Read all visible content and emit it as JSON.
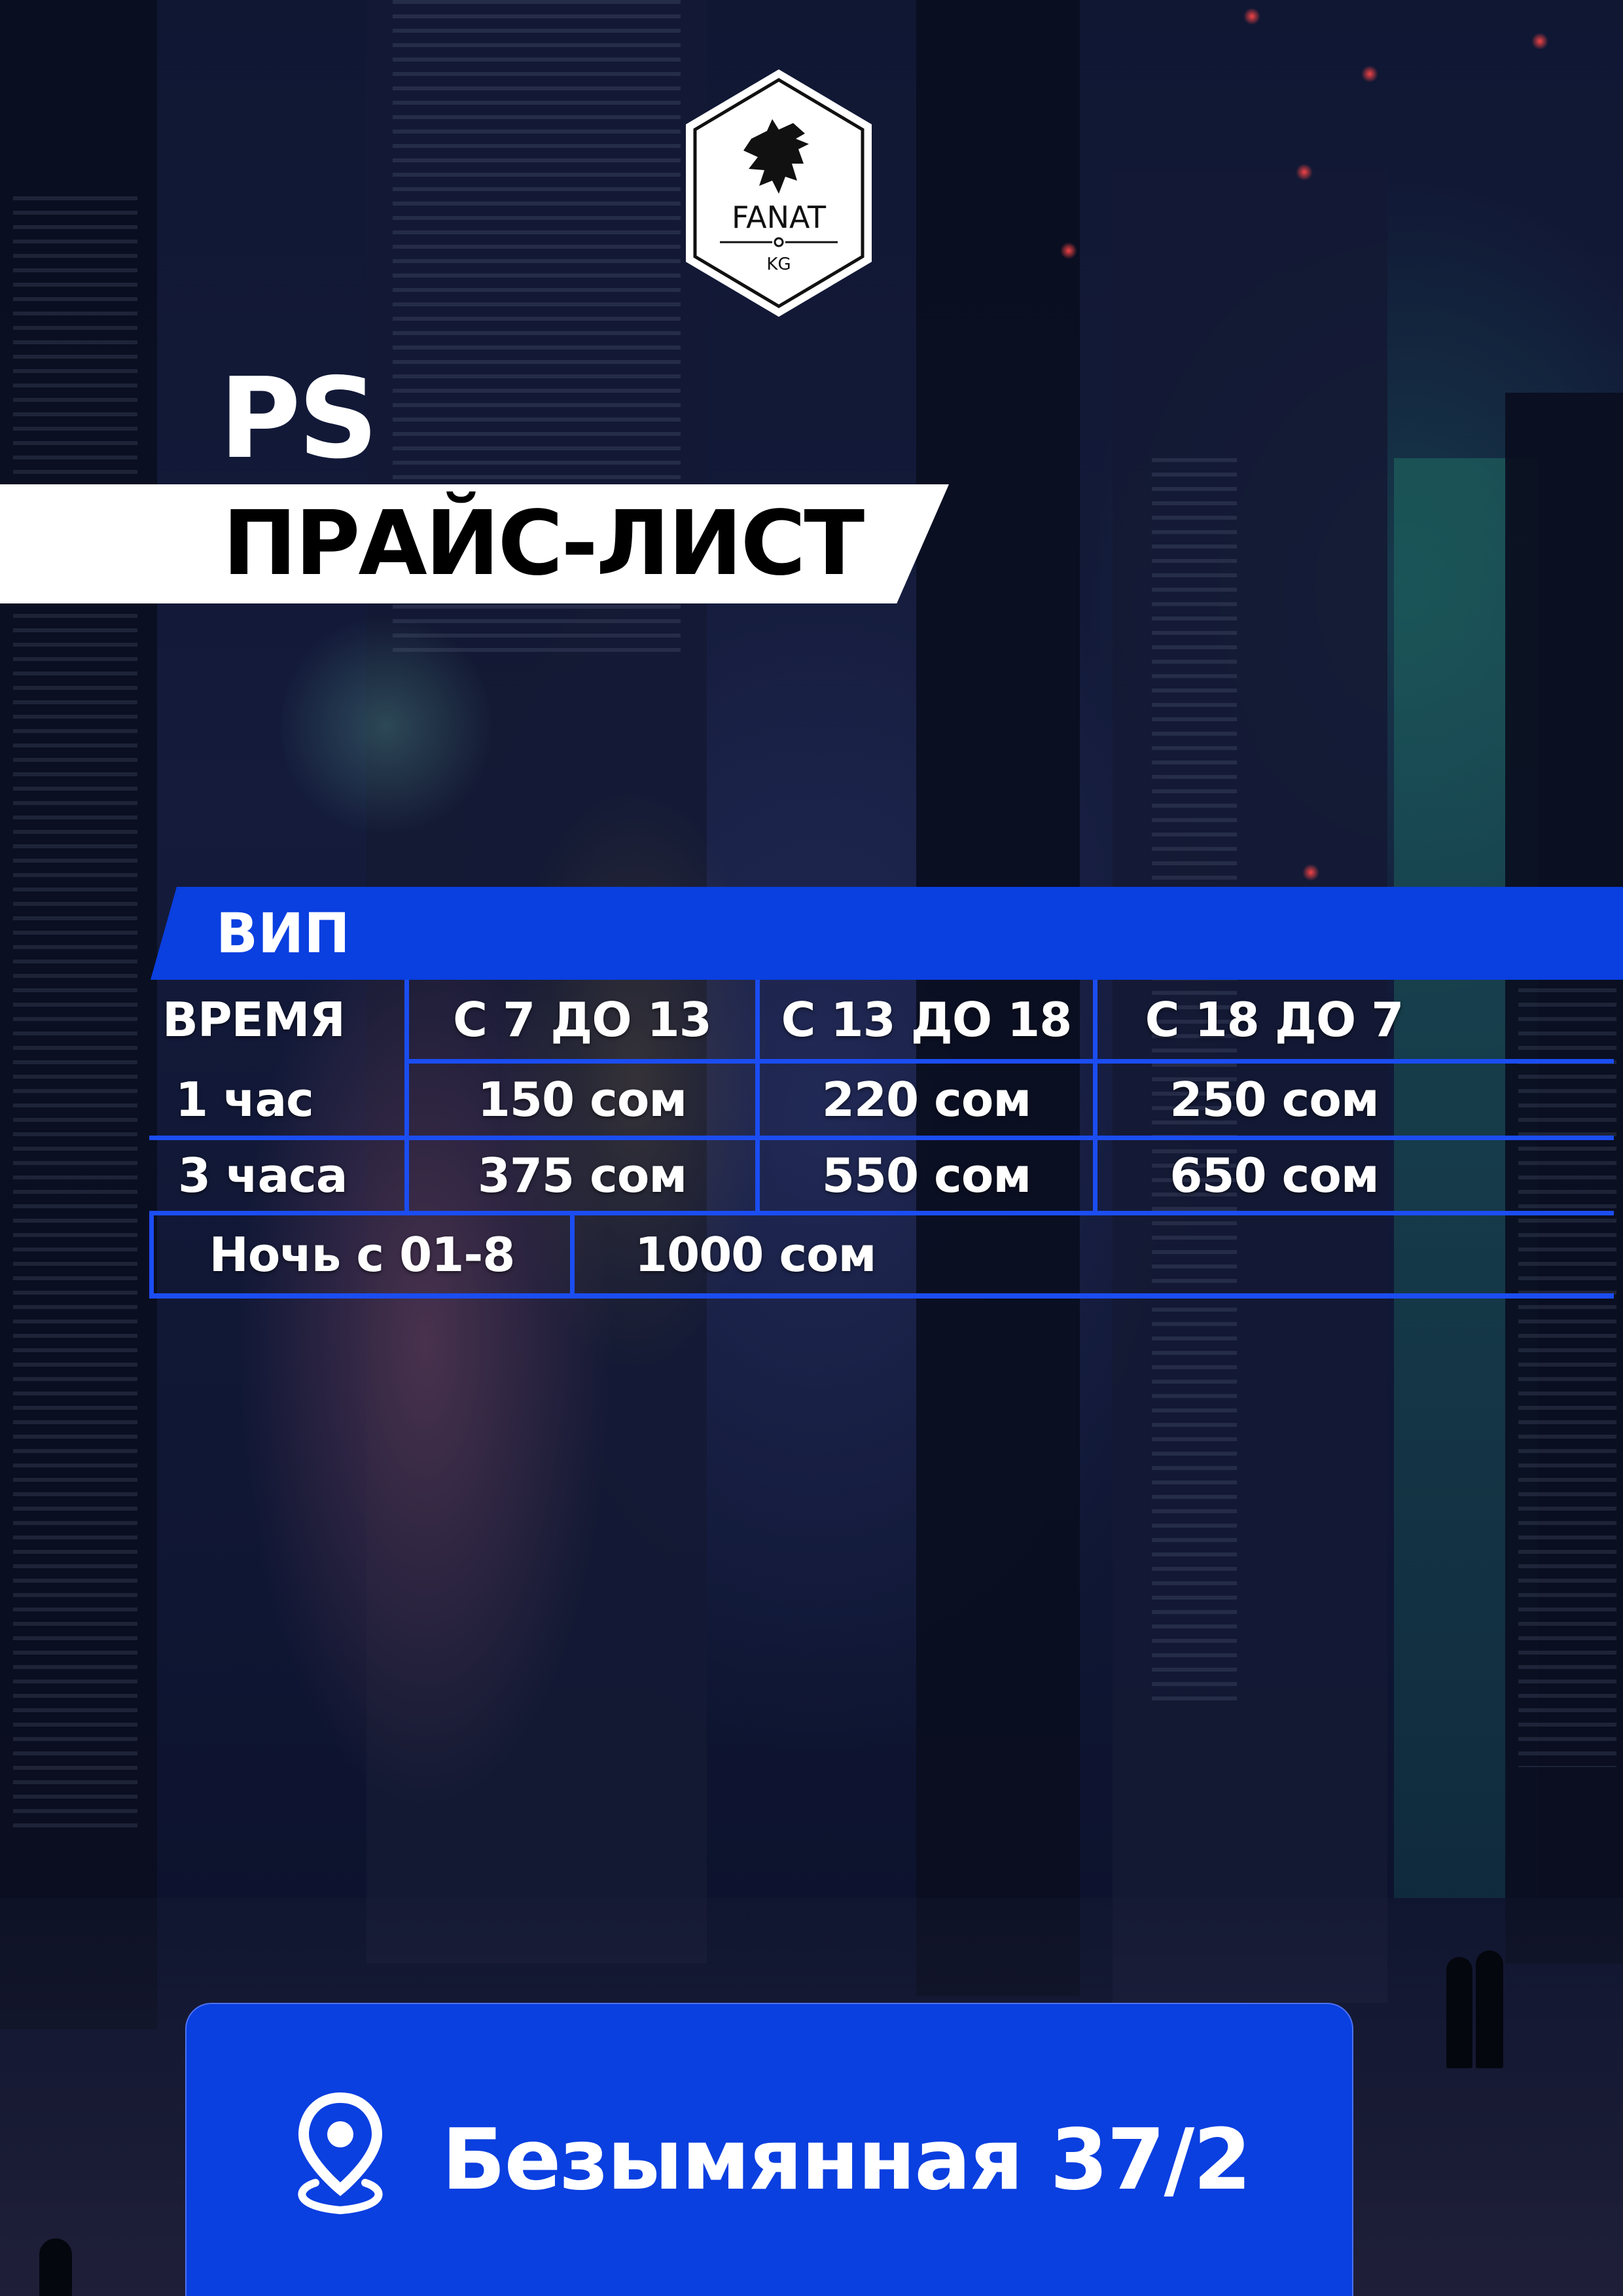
{
  "logo": {
    "brand": "FANAT",
    "suffix": "KG",
    "emblem": "griffin-icon"
  },
  "header": {
    "category": "PS",
    "title": "ПРАЙС-ЛИСТ"
  },
  "price_table": {
    "section": "ВИП",
    "columns": [
      "ВРЕМЯ",
      "С 7 ДО 13",
      "С 13 ДО 18",
      "С 18 ДО 7"
    ],
    "rows": [
      {
        "label": "1 час",
        "prices": [
          "150 сом",
          "220 сом",
          "250 сом"
        ]
      },
      {
        "label": "3 часа",
        "prices": [
          "375 сом",
          "550 сом",
          "650 сом"
        ]
      }
    ],
    "night": {
      "label": "Ночь с 01-8",
      "price": "1000 сом"
    }
  },
  "address": {
    "icon": "location-pin-icon",
    "text": "Безымянная 37/2"
  },
  "colors": {
    "accent": "#0a3fe0",
    "grid": "#1b4df2",
    "banner": "#ffffff",
    "background": "#101733"
  }
}
